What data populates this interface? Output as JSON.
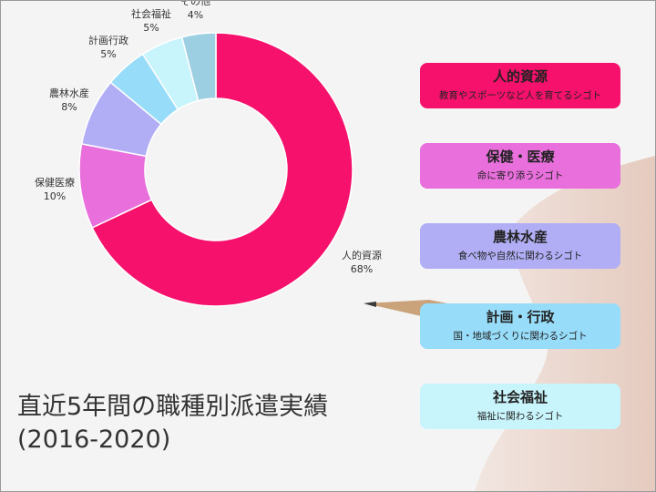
{
  "chart_data": {
    "type": "pie",
    "donut": true,
    "title": "直近5年間の職種別派遣実績",
    "subtitle": "(2016-2020)",
    "slices": [
      {
        "name": "人的資源",
        "value": 68,
        "label": "68%",
        "color": "#f5116c"
      },
      {
        "name": "保健医療",
        "value": 10,
        "label": "10%",
        "color": "#e86fdc"
      },
      {
        "name": "農林水産",
        "value": 8,
        "label": "8%",
        "color": "#b1aef5"
      },
      {
        "name": "計画行政",
        "value": 5,
        "label": "5%",
        "color": "#97dcf9"
      },
      {
        "name": "社会福祉",
        "value": 5,
        "label": "5%",
        "color": "#c8f4fb"
      },
      {
        "name": "その他",
        "value": 4,
        "label": "4%",
        "color": "#9ccfe1"
      }
    ]
  },
  "cards": [
    {
      "title": "人的資源",
      "subtitle": "教育やスポーツなど人を育てるシゴト",
      "color": "#f5116c"
    },
    {
      "title": "保健・医療",
      "subtitle": "命に寄り添うシゴト",
      "color": "#e86fdc"
    },
    {
      "title": "農林水産",
      "subtitle": "食べ物や自然に関わるシゴト",
      "color": "#b1aef5"
    },
    {
      "title": "計画・行政",
      "subtitle": "国・地域づくりに関わるシゴト",
      "color": "#97dcf9"
    },
    {
      "title": "社会福祉",
      "subtitle": "福祉に関わるシゴト",
      "color": "#c8f4fb"
    }
  ]
}
